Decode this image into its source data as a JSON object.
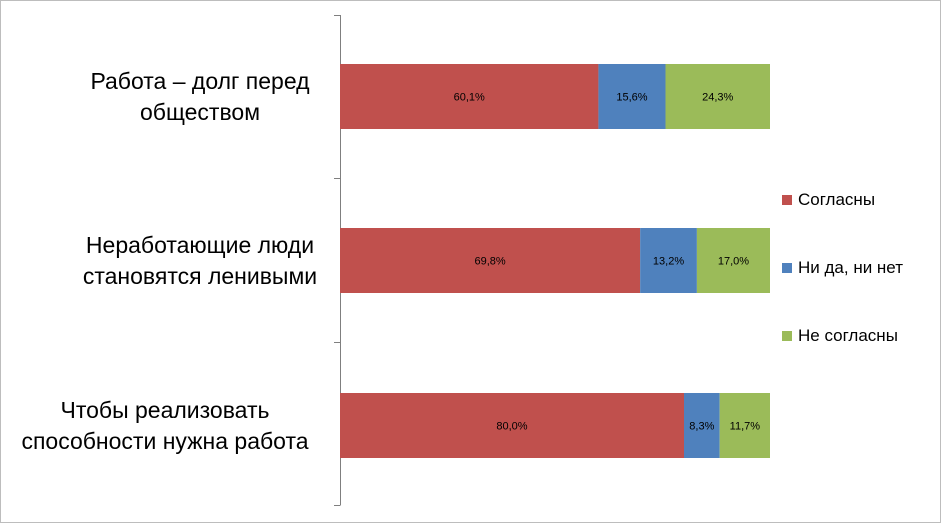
{
  "chart_data": {
    "type": "bar",
    "orientation": "horizontal",
    "stacked": true,
    "title": "",
    "xlabel": "",
    "ylabel": "",
    "xlim": [
      0,
      100
    ],
    "grid": false,
    "legend_position": "right",
    "categories": [
      "Работа – долг перед обществом",
      "Неработающие люди становятся ленивыми",
      "Чтобы реализовать способности нужна работа"
    ],
    "category_display": [
      "Работа – долг перед\nобществом",
      "Неработающие люди\nстановятся ленивыми",
      "Чтобы реализовать\nспособности нужна работа"
    ],
    "series": [
      {
        "name": "Согласны",
        "color": "#c0504d",
        "values": [
          60.1,
          69.8,
          80.0
        ],
        "labels": [
          "60,1%",
          "69,8%",
          "80,0%"
        ]
      },
      {
        "name": "Ни да, ни нет",
        "color": "#4f81bd",
        "values": [
          15.6,
          13.2,
          8.3
        ],
        "labels": [
          "15,6%",
          "13,2%",
          "8,3%"
        ]
      },
      {
        "name": "Не согласны",
        "color": "#9bbb59",
        "values": [
          24.3,
          17.0,
          11.7
        ],
        "labels": [
          "24,3%",
          "17,0%",
          "11,7%"
        ]
      }
    ]
  }
}
